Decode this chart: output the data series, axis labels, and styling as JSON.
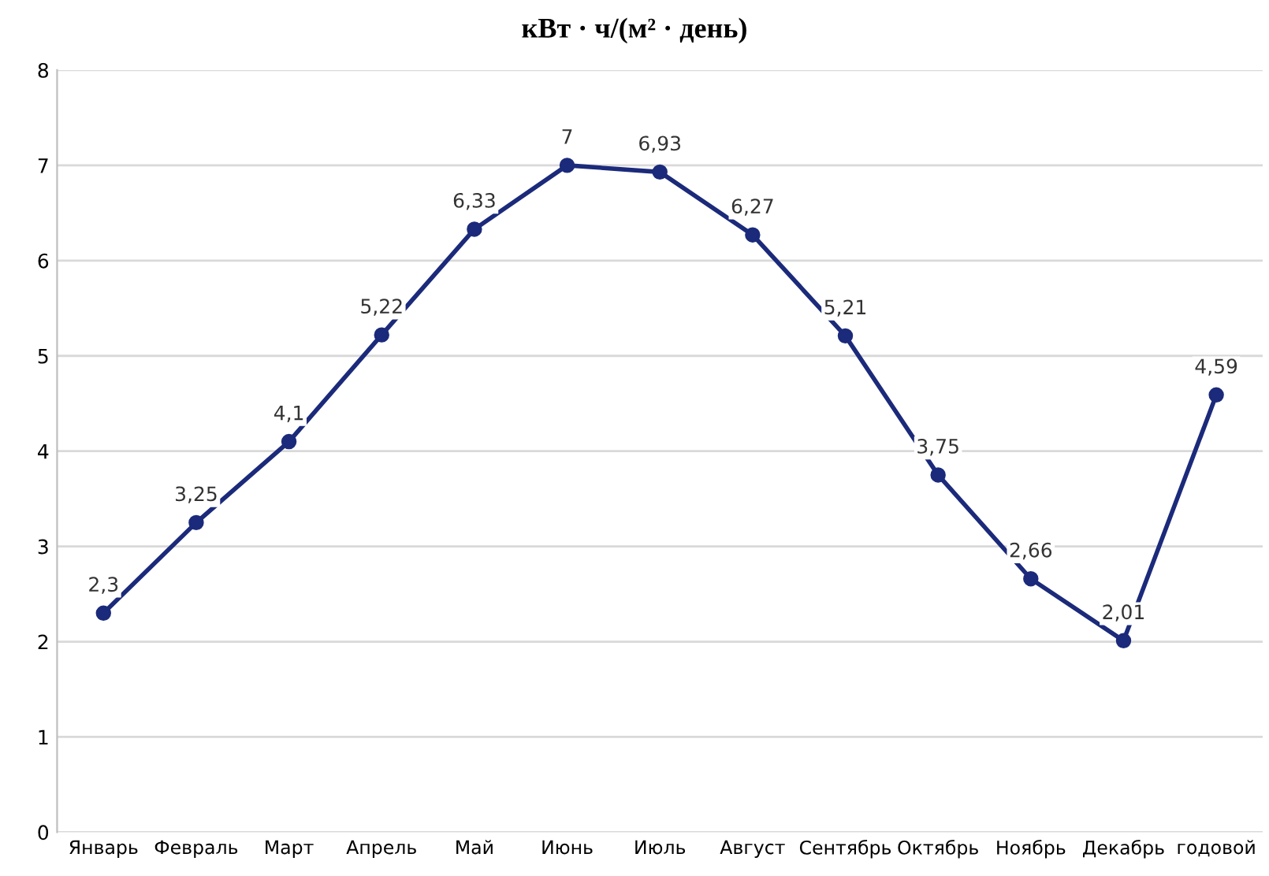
{
  "chart_data": {
    "type": "line",
    "title": "кВт · ч/(м² · день)",
    "categories": [
      "Январь",
      "Февраль",
      "Март",
      "Апрель",
      "Май",
      "Июнь",
      "Июль",
      "Август",
      "Сентябрь",
      "Октябрь",
      "Ноябрь",
      "Декабрь",
      "годовой"
    ],
    "series": [
      {
        "color": "#1b2a7a",
        "values": [
          2.3,
          3.25,
          4.1,
          5.22,
          6.33,
          7,
          6.93,
          6.27,
          5.21,
          3.75,
          2.66,
          2.01,
          4.59
        ],
        "value_labels": [
          "2,3",
          "3,25",
          "4,1",
          "5,22",
          "6,33",
          "7",
          "6,93",
          "6,27",
          "5,21",
          "3,75",
          "2,66",
          "2,01",
          "4,59"
        ]
      }
    ],
    "ylim": [
      0,
      8
    ],
    "yticks": [
      0,
      1,
      2,
      3,
      4,
      5,
      6,
      7,
      8
    ],
    "grid": "y",
    "marker": "circle",
    "line_style": "solid"
  }
}
